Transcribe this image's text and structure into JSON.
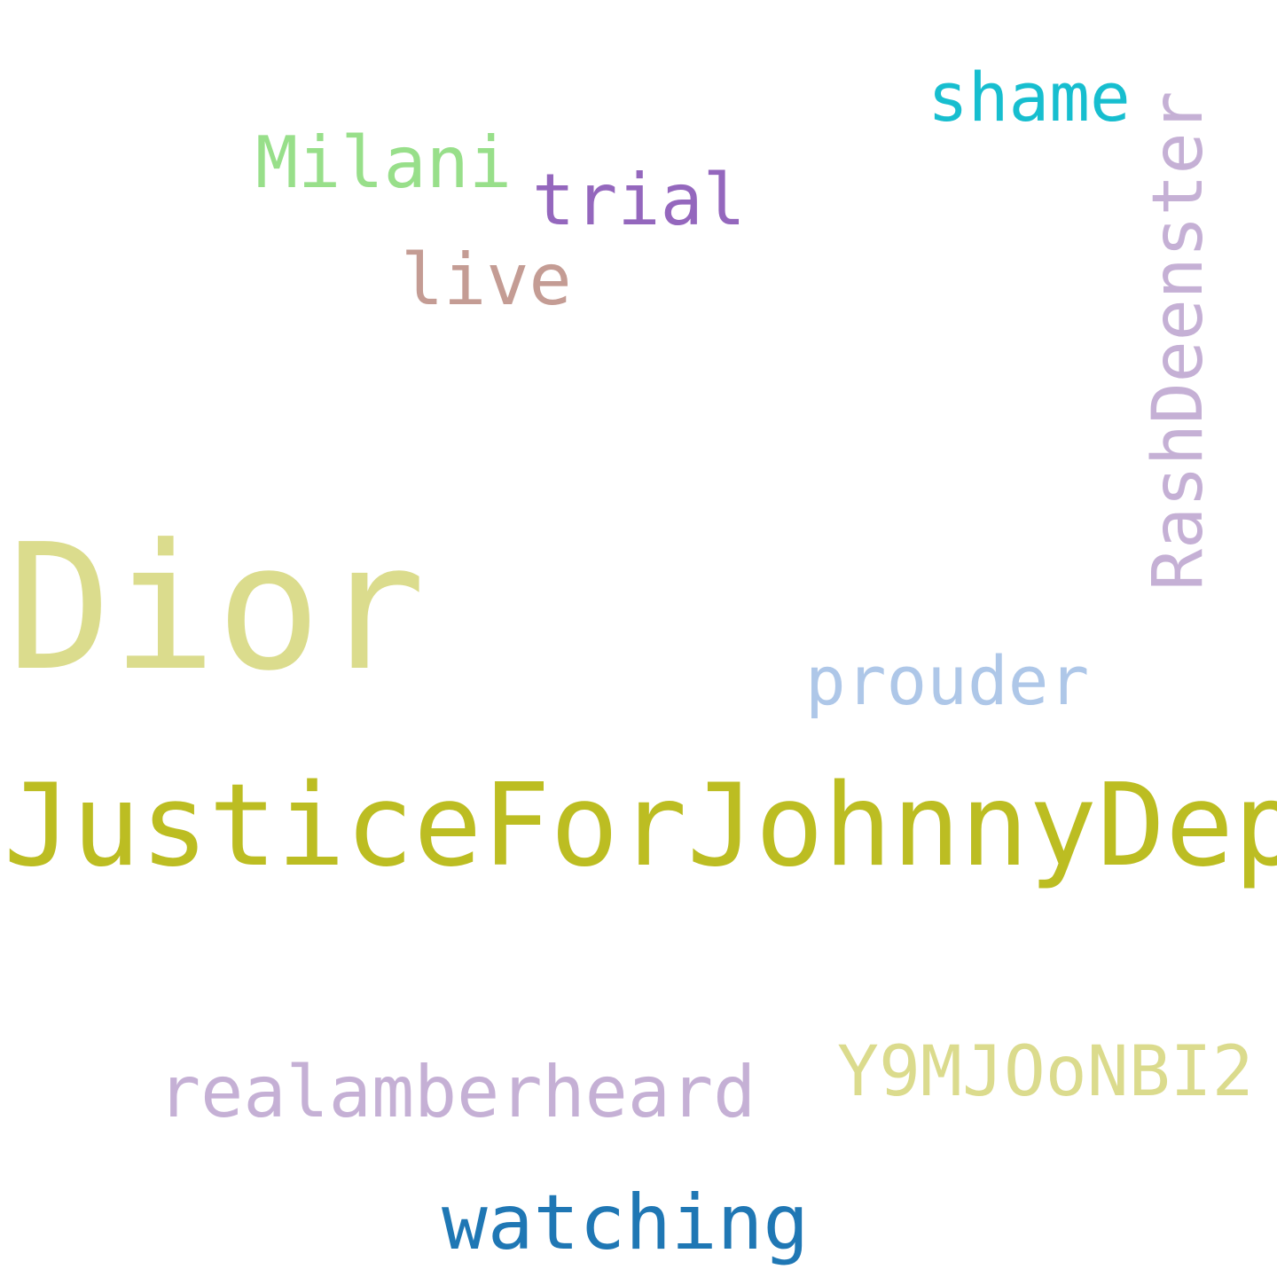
{
  "words": [
    {
      "text": "Dior",
      "color": "#dbdc8d"
    },
    {
      "text": "JusticeForJohnnyDepp",
      "color": "#bcbd22"
    },
    {
      "text": "Milani",
      "color": "#98df8a"
    },
    {
      "text": "trial",
      "color": "#9467bd"
    },
    {
      "text": "live",
      "color": "#c49c94"
    },
    {
      "text": "shame",
      "color": "#17becf"
    },
    {
      "text": "RashDeenster",
      "color": "#c5b0d5"
    },
    {
      "text": "prouder",
      "color": "#aec7e8"
    },
    {
      "text": "Y9MJOoNBI2",
      "color": "#dbdb8d"
    },
    {
      "text": "realamberheard",
      "color": "#c5b0d5"
    },
    {
      "text": "watching",
      "color": "#1f77b4"
    }
  ]
}
